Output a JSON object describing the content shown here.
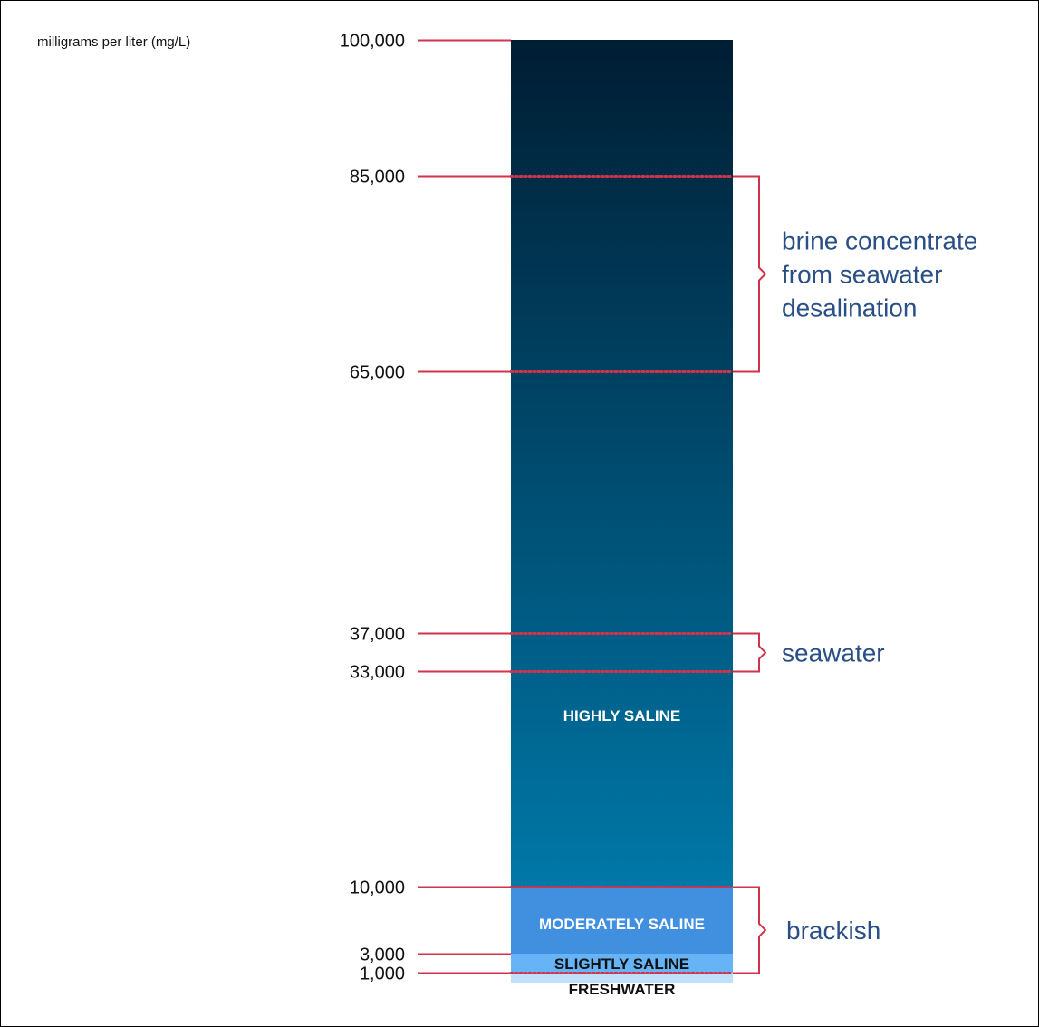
{
  "unit_label": "milligrams per liter (mg/L)",
  "ticks": [
    {
      "label": "100,000",
      "value": 100000
    },
    {
      "label": "85,000",
      "value": 85000
    },
    {
      "label": "65,000",
      "value": 65000
    },
    {
      "label": "37,000",
      "value": 37000
    },
    {
      "label": "33,000",
      "value": 33000
    },
    {
      "label": "10,000",
      "value": 10000
    },
    {
      "label": "3,000",
      "value": 3000
    },
    {
      "label": "1,000",
      "value": 1000
    }
  ],
  "zones": [
    {
      "label": "HIGHLY SALINE",
      "min": 10000,
      "max": 100000,
      "color_top": "#001d33",
      "color_bottom": "#0078a8"
    },
    {
      "label": "MODERATELY SALINE",
      "min": 3000,
      "max": 10000,
      "color": "#4190e0"
    },
    {
      "label": "SLIGHTLY SALINE",
      "min": 1000,
      "max": 3000,
      "color": "#66b4f5"
    },
    {
      "label": "FRESHWATER",
      "min": 0,
      "max": 1000,
      "color": "#bfe0fb"
    }
  ],
  "annotations": [
    {
      "lines": [
        "brine concentrate",
        "from seawater",
        "desalination"
      ],
      "min": 65000,
      "max": 85000
    },
    {
      "lines": [
        "seawater"
      ],
      "min": 33000,
      "max": 37000
    },
    {
      "lines": [
        "brackish"
      ],
      "min": 1000,
      "max": 10000
    }
  ],
  "colors": {
    "tick_line": "#d0334a",
    "annotation_text": "#2a4f86",
    "dotted_line": "#d0334a"
  }
}
